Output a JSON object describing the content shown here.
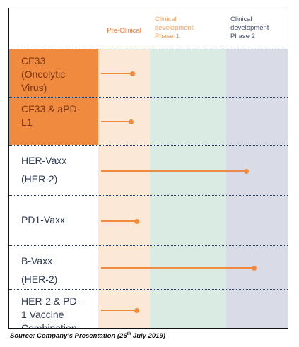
{
  "phases": [
    {
      "lines": [
        "Pre-Clinical"
      ]
    },
    {
      "lines": [
        "Clinical",
        "development",
        "Phase 1"
      ]
    },
    {
      "lines": [
        "Clinical",
        "development",
        "Phase 2"
      ]
    }
  ],
  "colors": {
    "accent": "#f08a3e",
    "preclinical_bg": "#fbe8d7",
    "phase1_bg": "#d9ebe3",
    "phase2_bg": "#d9dce6",
    "text": "#2e3b52"
  },
  "rows": [
    {
      "lines": [
        "CF33",
        "(Oncolytic",
        "Virus)"
      ],
      "highlight": true,
      "progress": 0.18
    },
    {
      "lines": [
        "CF33 & aPD-",
        "L1"
      ],
      "highlight": true,
      "progress": 0.17
    },
    {
      "lines": [
        "HER-Vaxx",
        "(HER-2)"
      ],
      "highlight": false,
      "progress": 0.78
    },
    {
      "lines": [
        "PD1-Vaxx"
      ],
      "highlight": false,
      "progress": 0.2
    },
    {
      "lines": [
        "B-Vaxx",
        "(HER-2)"
      ],
      "highlight": false,
      "progress": 0.82
    },
    {
      "lines": [
        "HER-2 & PD-",
        "1 Vaccine",
        "Combination"
      ],
      "highlight": false,
      "progress": 0.2
    }
  ],
  "source": {
    "prefix": "Source: Company’s Presentation (26",
    "sup": "th",
    "suffix": " July 2019)"
  }
}
